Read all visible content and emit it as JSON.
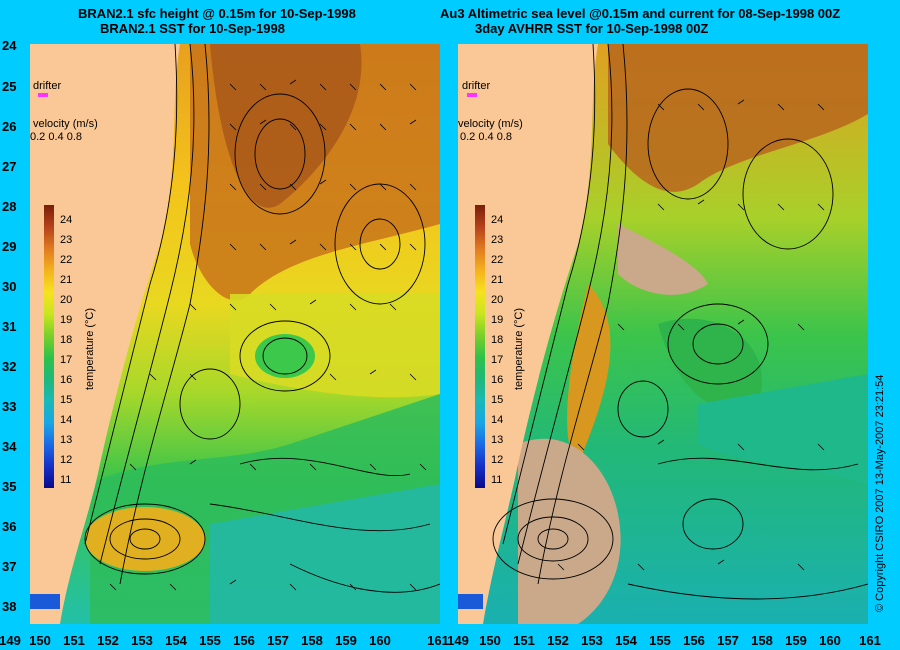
{
  "left": {
    "title_line1": "BRAN2.1 sfc height @ 0.15m for 10-Sep-1998",
    "title_line2": "BRAN2.1 SST for 10-Sep-1998",
    "x_ticks": [
      "149",
      "150",
      "151",
      "152",
      "153",
      "154",
      "155",
      "156",
      "157",
      "158",
      "159",
      "160",
      "161"
    ],
    "y_ticks": [
      "24",
      "25",
      "26",
      "27",
      "28",
      "29",
      "30",
      "31",
      "32",
      "33",
      "34",
      "35",
      "36",
      "37",
      "38"
    ]
  },
  "right": {
    "title_line1": "Au3 Altimetric sea level  @0.15m and current for 08-Sep-1998 00Z",
    "title_line2": "3day AVHRR SST for 10-Sep-1998 00Z",
    "x_ticks": [
      "149",
      "150",
      "151",
      "152",
      "153",
      "154",
      "155",
      "156",
      "157",
      "158",
      "159",
      "160",
      "161"
    ]
  },
  "legend": {
    "drifter_label": "drifter",
    "velocity_label": "velocity (m/s)",
    "velocity_values": "0.2 0.4 0.8",
    "colorbar_title": "temperature (°C)",
    "colorbar_ticks": [
      "24",
      "23",
      "22",
      "21",
      "20",
      "19",
      "18",
      "17",
      "16",
      "15",
      "14",
      "13",
      "12",
      "11"
    ]
  },
  "copyright": "© Copyright CSIRO 2007   13-May-2007 23:21:54",
  "colors": {
    "background": "#00ccff",
    "land": "#fac896",
    "drifter_marker": "#ff33ff",
    "cloud_mask": "#c9a98a"
  }
}
